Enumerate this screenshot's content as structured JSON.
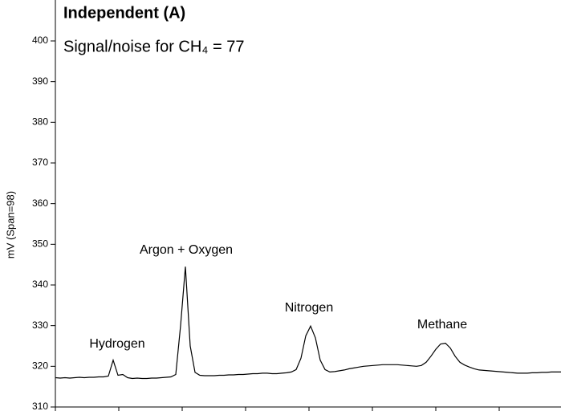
{
  "chart_data": {
    "type": "line",
    "title": "Independent (A)",
    "subtitle": "Signal/noise for CH₄ = 77",
    "y_label": "mV (Span=98)",
    "ylim": [
      310,
      400
    ],
    "yticks": [
      310,
      320,
      330,
      340,
      350,
      360,
      370,
      380,
      390,
      400
    ],
    "annotations": [
      "Hydrogen",
      "Argon + Oxygen",
      "Nitrogen",
      "Methane"
    ],
    "color": "#000000",
    "values": [
      317.2,
      317.1,
      317.2,
      317.1,
      317.2,
      317.3,
      317.2,
      317.3,
      317.3,
      317.4,
      317.4,
      317.6,
      321.5,
      317.8,
      318.0,
      317.2,
      317.0,
      317.1,
      317.0,
      317.0,
      317.1,
      317.1,
      317.2,
      317.3,
      317.4,
      318.0,
      330.0,
      344.5,
      325.0,
      318.5,
      317.8,
      317.7,
      317.7,
      317.7,
      317.8,
      317.8,
      317.9,
      317.9,
      318.0,
      318.0,
      318.1,
      318.2,
      318.2,
      318.3,
      318.3,
      318.2,
      318.2,
      318.3,
      318.4,
      318.6,
      319.2,
      322.0,
      327.5,
      329.9,
      327.0,
      321.5,
      319.2,
      318.6,
      318.7,
      318.9,
      319.1,
      319.4,
      319.6,
      319.8,
      320.0,
      320.1,
      320.2,
      320.3,
      320.4,
      320.4,
      320.4,
      320.4,
      320.3,
      320.2,
      320.1,
      320.0,
      320.2,
      321.0,
      322.5,
      324.2,
      325.5,
      325.7,
      324.5,
      322.5,
      321.0,
      320.3,
      319.8,
      319.4,
      319.1,
      319.0,
      318.9,
      318.8,
      318.7,
      318.6,
      318.5,
      318.4,
      318.3,
      318.3,
      318.3,
      318.4,
      318.4,
      318.5,
      318.5,
      318.6,
      318.6,
      318.6
    ]
  }
}
